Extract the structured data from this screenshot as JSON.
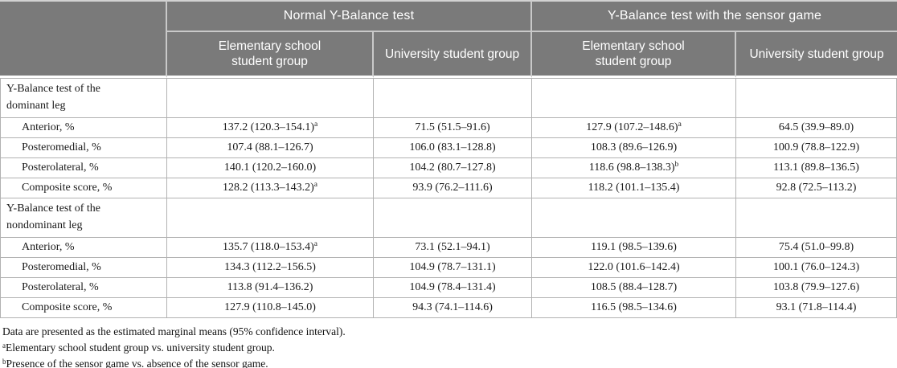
{
  "colors": {
    "header_bg": "#7a7a7a",
    "header_text": "#ffffff",
    "header_divider": "#c9c9c9",
    "body_border": "#b2b2b2",
    "body_text": "#1a1a1a",
    "page_bg": "#ffffff"
  },
  "table": {
    "group_headers": [
      {
        "label": "Normal Y-Balance test",
        "span": 2
      },
      {
        "label": "Y-Balance test with the sensor game",
        "span": 2
      }
    ],
    "column_headers": [
      "Elementary school student group",
      "University student group",
      "Elementary school student group",
      "University student group"
    ],
    "sections": [
      {
        "label": "Y-Balance test of the dominant leg",
        "rows": [
          {
            "label": "Anterior, %",
            "values": [
              {
                "text": "137.2 (120.3–154.1)",
                "sup": "a"
              },
              {
                "text": "71.5 (51.5–91.6)",
                "sup": ""
              },
              {
                "text": "127.9 (107.2–148.6)",
                "sup": "a"
              },
              {
                "text": "64.5 (39.9–89.0)",
                "sup": ""
              }
            ]
          },
          {
            "label": "Posteromedial, %",
            "values": [
              {
                "text": "107.4 (88.1–126.7)",
                "sup": ""
              },
              {
                "text": "106.0 (83.1–128.8)",
                "sup": ""
              },
              {
                "text": "108.3 (89.6–126.9)",
                "sup": ""
              },
              {
                "text": "100.9 (78.8–122.9)",
                "sup": ""
              }
            ]
          },
          {
            "label": "Posterolateral, %",
            "values": [
              {
                "text": "140.1 (120.2–160.0)",
                "sup": ""
              },
              {
                "text": "104.2 (80.7–127.8)",
                "sup": ""
              },
              {
                "text": "118.6 (98.8–138.3)",
                "sup": "b"
              },
              {
                "text": "113.1 (89.8–136.5)",
                "sup": ""
              }
            ]
          },
          {
            "label": "Composite score, %",
            "values": [
              {
                "text": "128.2 (113.3–143.2)",
                "sup": "a"
              },
              {
                "text": "93.9 (76.2–111.6)",
                "sup": ""
              },
              {
                "text": "118.2 (101.1–135.4)",
                "sup": ""
              },
              {
                "text": "92.8 (72.5–113.2)",
                "sup": ""
              }
            ]
          }
        ]
      },
      {
        "label": "Y-Balance test of the nondominant leg",
        "rows": [
          {
            "label": "Anterior, %",
            "values": [
              {
                "text": "135.7 (118.0–153.4)",
                "sup": "a"
              },
              {
                "text": "73.1 (52.1–94.1)",
                "sup": ""
              },
              {
                "text": "119.1 (98.5–139.6)",
                "sup": ""
              },
              {
                "text": "75.4 (51.0–99.8)",
                "sup": ""
              }
            ]
          },
          {
            "label": "Posteromedial, %",
            "values": [
              {
                "text": "134.3 (112.2–156.5)",
                "sup": ""
              },
              {
                "text": "104.9 (78.7–131.1)",
                "sup": ""
              },
              {
                "text": "122.0 (101.6–142.4)",
                "sup": ""
              },
              {
                "text": "100.1 (76.0–124.3)",
                "sup": ""
              }
            ]
          },
          {
            "label": "Posterolateral, %",
            "values": [
              {
                "text": "113.8 (91.4–136.2)",
                "sup": ""
              },
              {
                "text": "104.9 (78.4–131.4)",
                "sup": ""
              },
              {
                "text": "108.5 (88.4–128.7)",
                "sup": ""
              },
              {
                "text": "103.8 (79.9–127.6)",
                "sup": ""
              }
            ]
          },
          {
            "label": "Composite score, %",
            "values": [
              {
                "text": "127.9 (110.8–145.0)",
                "sup": ""
              },
              {
                "text": "94.3 (74.1–114.6)",
                "sup": ""
              },
              {
                "text": "116.5 (98.5–134.6)",
                "sup": ""
              },
              {
                "text": "93.1 (71.8–114.4)",
                "sup": ""
              }
            ]
          }
        ]
      }
    ],
    "footnotes": [
      {
        "sup": "",
        "text": "Data are presented as the estimated marginal means (95% confidence interval)."
      },
      {
        "sup": "a",
        "text": "Elementary school student group vs. university student group."
      },
      {
        "sup": "b",
        "text": "Presence of the sensor game vs. absence of the sensor game."
      }
    ]
  }
}
